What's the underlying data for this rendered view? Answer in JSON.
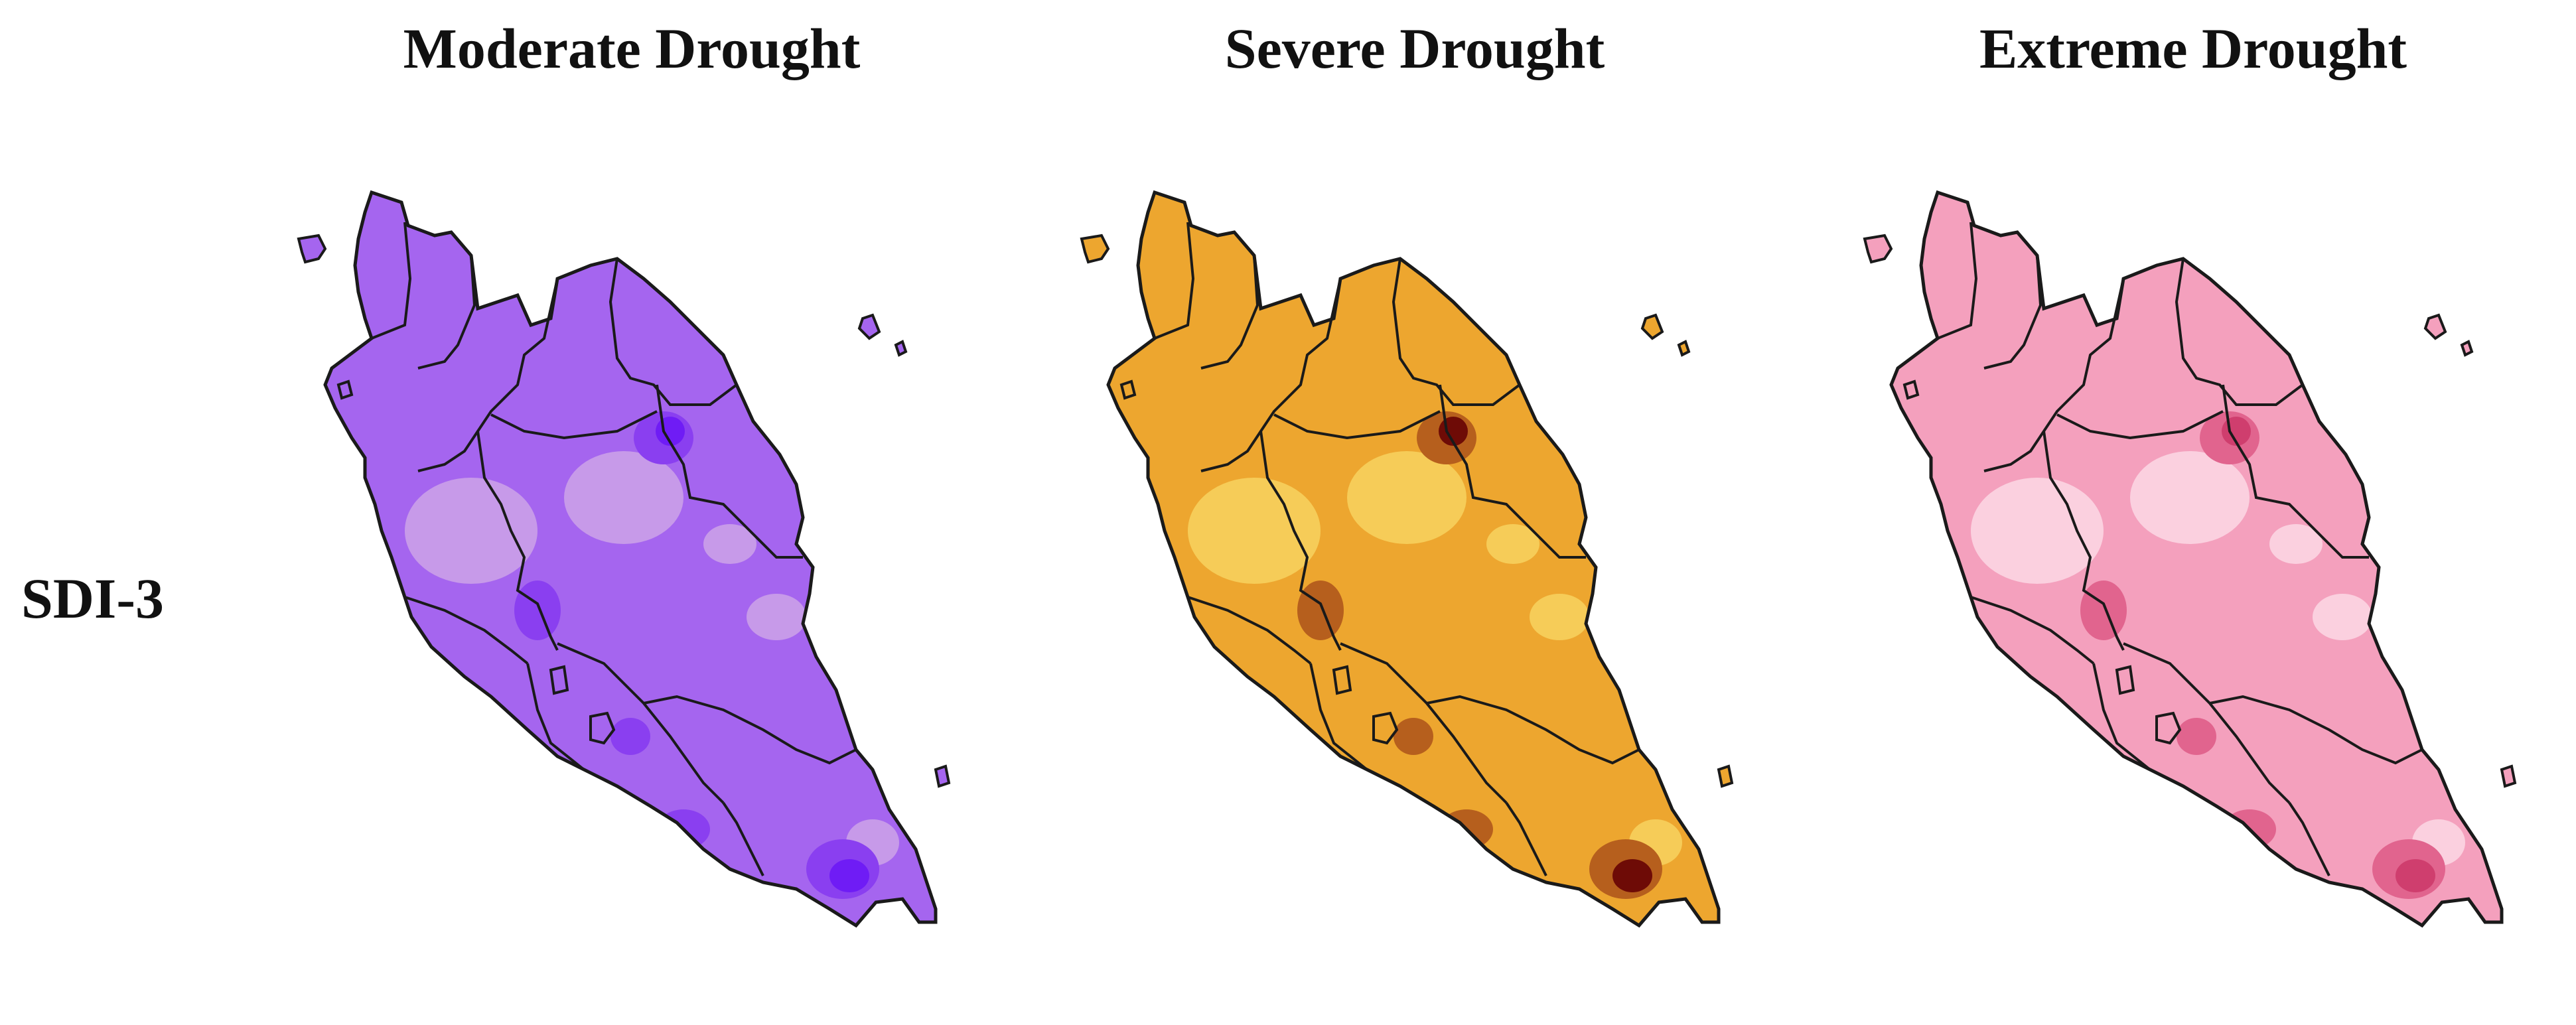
{
  "panels": [
    {
      "title": "Moderate Drought",
      "palette": {
        "base": "#a565ef",
        "light": "#c79ae9",
        "dark": "#8a3ff0",
        "darkest": "#6f1cf5"
      }
    },
    {
      "title": "Severe Drought",
      "palette": {
        "base": "#eda62f",
        "light": "#f6cc58",
        "dark": "#b65f1d",
        "darkest": "#6e0b06"
      }
    },
    {
      "title": "Extreme Drought",
      "palette": {
        "base": "#f4a0bd",
        "light": "#fbd0df",
        "dark": "#e1648e",
        "darkest": "#cf3e6e"
      }
    }
  ],
  "row_label": "SDI-3"
}
